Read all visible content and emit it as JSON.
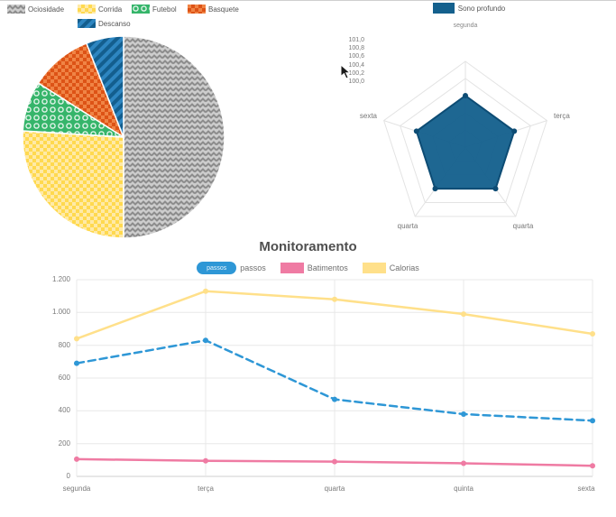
{
  "chart_data": [
    {
      "type": "pie",
      "categories": [
        "Ociosidade",
        "Corrida",
        "Futebol",
        "Basquete",
        "Descanso"
      ],
      "values": [
        50,
        26,
        8,
        10,
        6
      ],
      "colors": [
        "#9b9b9b",
        "#ffd94f",
        "#35b56a",
        "#dd5316",
        "#2e86c1"
      ],
      "patterns": [
        "zigzag",
        "checker",
        "rings",
        "checker",
        "diagonal-stripes"
      ],
      "legend_position": "top"
    },
    {
      "type": "radar",
      "categories": [
        "segunda",
        "terça",
        "quarta",
        "quarta",
        "sexta"
      ],
      "series": [
        {
          "name": "Sono profundo",
          "values": [
            100.6,
            100.6,
            100.6,
            100.6,
            100.6
          ],
          "color": "#15618e"
        }
      ],
      "rmin": 100.0,
      "rmax": 101.0,
      "ticks": [
        "101,0",
        "100,8",
        "100,6",
        "100,4",
        "100,2",
        "100,0"
      ],
      "grid": true,
      "legend_position": "top"
    },
    {
      "type": "line",
      "title": "Monitoramento",
      "categories": [
        "segunda",
        "terça",
        "quarta",
        "quinta",
        "sexta"
      ],
      "series": [
        {
          "name": "passos",
          "values": [
            690,
            830,
            470,
            380,
            340
          ],
          "color": "#2e97d6",
          "style": "dashed"
        },
        {
          "name": "Batimentos",
          "values": [
            105,
            95,
            90,
            80,
            65
          ],
          "color": "#ef7ba3",
          "style": "solid"
        },
        {
          "name": "Calorias",
          "values": [
            840,
            1130,
            1080,
            990,
            870
          ],
          "color": "#ffe08a",
          "style": "solid"
        }
      ],
      "ylim": [
        0,
        1200
      ],
      "yticks": [
        "1.200",
        "1.000",
        "800",
        "600",
        "400",
        "200",
        "0"
      ],
      "grid": true,
      "legend_position": "top"
    }
  ]
}
